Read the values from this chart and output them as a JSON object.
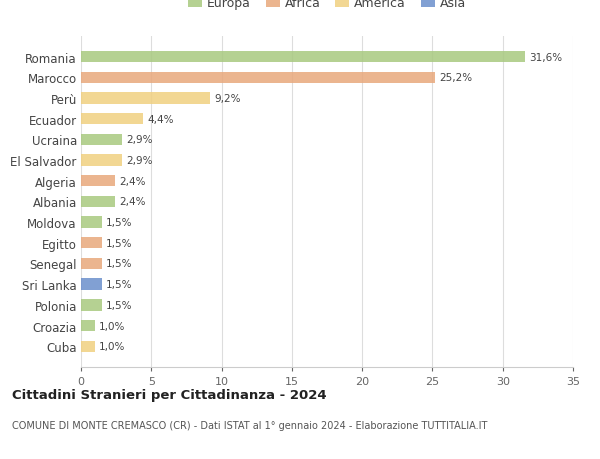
{
  "categories": [
    "Romania",
    "Marocco",
    "Perù",
    "Ecuador",
    "Ucraina",
    "El Salvador",
    "Algeria",
    "Albania",
    "Moldova",
    "Egitto",
    "Senegal",
    "Sri Lanka",
    "Polonia",
    "Croazia",
    "Cuba"
  ],
  "values": [
    31.6,
    25.2,
    9.2,
    4.4,
    2.9,
    2.9,
    2.4,
    2.4,
    1.5,
    1.5,
    1.5,
    1.5,
    1.5,
    1.0,
    1.0
  ],
  "labels": [
    "31,6%",
    "25,2%",
    "9,2%",
    "4,4%",
    "2,9%",
    "2,9%",
    "2,4%",
    "2,4%",
    "1,5%",
    "1,5%",
    "1,5%",
    "1,5%",
    "1,5%",
    "1,0%",
    "1,0%"
  ],
  "continents": [
    "Europa",
    "Africa",
    "America",
    "America",
    "Europa",
    "America",
    "Africa",
    "Europa",
    "Europa",
    "Africa",
    "Africa",
    "Asia",
    "Europa",
    "Europa",
    "America"
  ],
  "colors": {
    "Europa": "#a8c97f",
    "Africa": "#e8a87c",
    "America": "#f0d080",
    "Asia": "#6b8fcc"
  },
  "legend_order": [
    "Europa",
    "Africa",
    "America",
    "Asia"
  ],
  "title": "Cittadini Stranieri per Cittadinanza - 2024",
  "subtitle": "COMUNE DI MONTE CREMASCO (CR) - Dati ISTAT al 1° gennaio 2024 - Elaborazione TUTTITALIA.IT",
  "xlim": [
    0,
    35
  ],
  "xticks": [
    0,
    5,
    10,
    15,
    20,
    25,
    30,
    35
  ],
  "bg_color": "#ffffff",
  "grid_color": "#dddddd",
  "bar_height": 0.55
}
